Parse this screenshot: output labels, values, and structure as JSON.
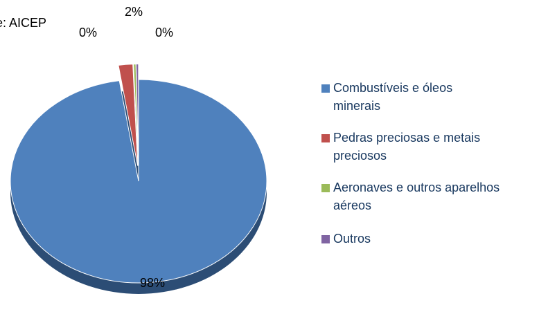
{
  "chart_data": {
    "type": "pie",
    "subtitle": "e: AICEP",
    "categories": [
      "Combustíveis e óleos minerais",
      "Pedras preciosas e metais preciosos",
      "Aeronaves e outros aparelhos aéreos",
      "Outros"
    ],
    "values": [
      97.6,
      1.8,
      0.3,
      0.3
    ],
    "value_labels": [
      "98%",
      "2%",
      "0%",
      "0%"
    ],
    "colors": [
      "#4f81bd",
      "#c0504d",
      "#9bbb59",
      "#8064a2"
    ],
    "legend": "right"
  }
}
